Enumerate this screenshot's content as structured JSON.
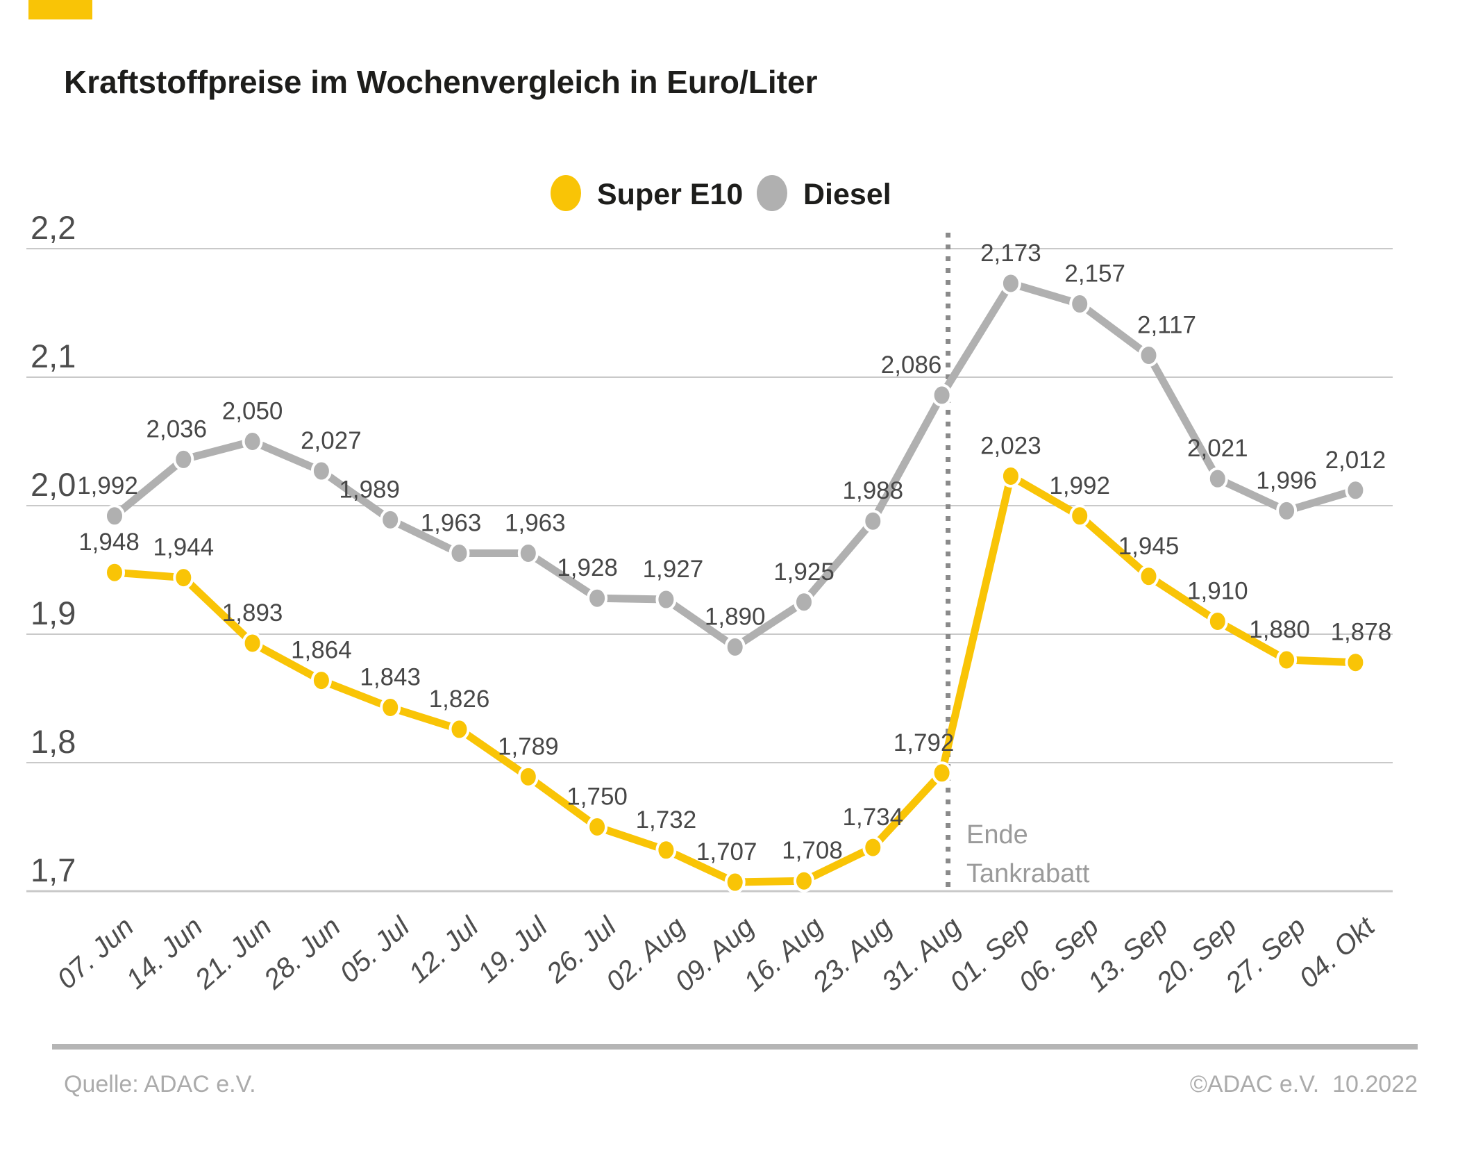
{
  "title": "Kraftstoffpreise im Wochenvergleich in Euro/Liter",
  "legend": {
    "items": [
      {
        "label": "Super E10",
        "color": "#f9c406"
      },
      {
        "label": "Diesel",
        "color": "#b0b0b0"
      }
    ]
  },
  "annotation": {
    "line1": "Ende",
    "line2": "Tankrabatt",
    "at_category": "31. Aug"
  },
  "footer": {
    "source": "Quelle: ADAC e.V.",
    "copyright": "©ADAC e.V.  10.2022"
  },
  "colors": {
    "accent_yellow": "#f9c406",
    "series_gray": "#b0b0b0",
    "grid": "#c9c9c9",
    "axis_text": "#4d4d4d",
    "value_text": "#474747",
    "dotted_line": "#8a8a8a",
    "annotation_text": "#9a9a9a",
    "footer_text": "#ababab",
    "footer_bar": "#b5b5b5",
    "title_text": "#1d1d1b"
  },
  "chart_data": {
    "type": "line",
    "categories": [
      "07. Jun",
      "14. Jun",
      "21. Jun",
      "28. Jun",
      "05. Jul",
      "12. Jul",
      "19. Jul",
      "26. Jul",
      "02. Aug",
      "09. Aug",
      "16. Aug",
      "23. Aug",
      "31. Aug",
      "01. Sep",
      "06. Sep",
      "13. Sep",
      "20. Sep",
      "27. Sep",
      "04. Okt"
    ],
    "series": [
      {
        "name": "Diesel",
        "color": "#b0b0b0",
        "values": [
          1.992,
          2.036,
          2.05,
          2.027,
          1.989,
          1.963,
          1.963,
          1.928,
          1.927,
          1.89,
          1.925,
          1.988,
          2.086,
          2.173,
          2.157,
          2.117,
          2.021,
          1.996,
          2.012
        ]
      },
      {
        "name": "Super E10",
        "color": "#f9c406",
        "values": [
          1.948,
          1.944,
          1.893,
          1.864,
          1.843,
          1.826,
          1.789,
          1.75,
          1.732,
          1.707,
          1.708,
          1.734,
          1.792,
          2.023,
          1.992,
          1.945,
          1.91,
          1.88,
          1.878
        ]
      }
    ],
    "ylim": [
      1.7,
      2.2
    ],
    "ytick_step": 0.1,
    "decimal_separator": ",",
    "grid": true,
    "legend_position": "top-center",
    "vline": {
      "at_category": "31. Aug",
      "style": "dotted",
      "label": [
        "Ende",
        "Tankrabatt"
      ]
    }
  }
}
